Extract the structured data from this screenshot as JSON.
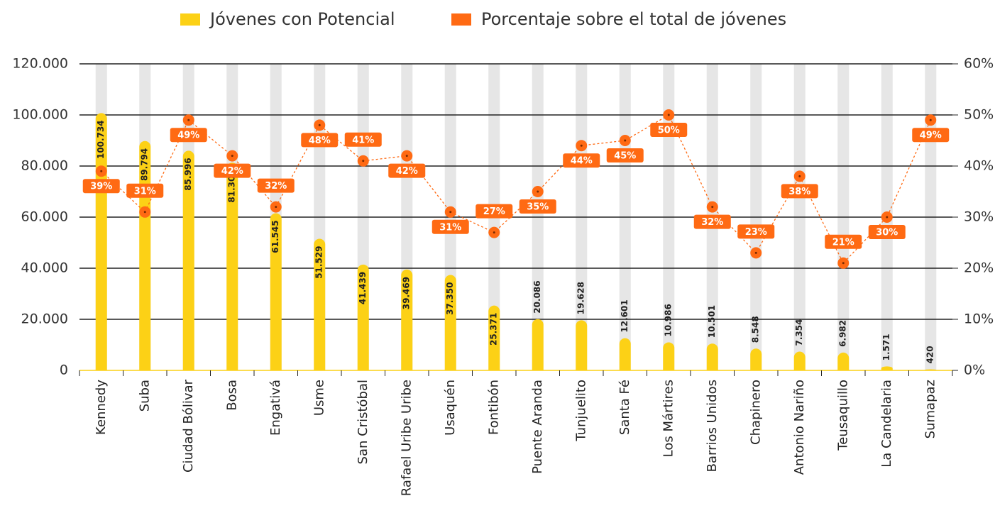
{
  "chart_data": {
    "type": "bar",
    "categories": [
      "Kennedy",
      "Suba",
      "Ciudad Bólivar",
      "Bosa",
      "Engativá",
      "Usme",
      "San Cristóbal",
      "Rafael Uribe Uribe",
      "Usaquén",
      "Fontibón",
      "Puente Aranda",
      "Tunjuelito",
      "Santa Fé",
      "Los Mártires",
      "Barrios Unidos",
      "Chapinero",
      "Antonio Nariño",
      "Teusaquillo",
      "La Candelaria",
      "Sumapaz"
    ],
    "series": [
      {
        "name": "Jóvenes con Potencial",
        "color": "#fcd116",
        "values": [
          100734,
          89794,
          85996,
          81307,
          61545,
          51529,
          41439,
          39469,
          37350,
          25371,
          20086,
          19628,
          12601,
          10986,
          10501,
          8548,
          7354,
          6982,
          1571,
          420
        ],
        "value_labels": [
          "100.734",
          "89.794",
          "85.996",
          "81.307",
          "61.545",
          "51.529",
          "41.439",
          "39.469",
          "37.350",
          "25.371",
          "20.086",
          "19.628",
          "12.601",
          "10.986",
          "10.501",
          "8.548",
          "7.354",
          "6.982",
          "1.571",
          "420"
        ]
      },
      {
        "name": "Porcentaje sobre el total de jóvenes",
        "color": "#ff6a13",
        "type": "line",
        "axis": "y2",
        "values": [
          39,
          31,
          49,
          42,
          32,
          48,
          41,
          42,
          31,
          27,
          35,
          44,
          45,
          50,
          32,
          23,
          38,
          21,
          30,
          49
        ],
        "value_labels": [
          "39%",
          "31%",
          "49%",
          "42%",
          "32%",
          "48%",
          "41%",
          "42%",
          "31%",
          "27%",
          "35%",
          "44%",
          "45%",
          "50%",
          "32%",
          "23%",
          "38%",
          "21%",
          "30%",
          "49%"
        ]
      }
    ],
    "ylim": [
      0,
      120000
    ],
    "yticks": [
      0,
      {
        "value": 20000,
        "label": "20.000"
      },
      {
        "value": 40000,
        "label": "40.000"
      },
      {
        "value": 60000,
        "label": "60.000"
      },
      {
        "value": 80000,
        "label": "80.000"
      },
      {
        "value": 100000,
        "label": "100.000"
      },
      {
        "value": 120000,
        "label": "120.000"
      }
    ],
    "y2lim": [
      0,
      60
    ],
    "y2ticks": [
      {
        "value": 0,
        "label": "0%"
      },
      {
        "value": 10,
        "label": "10%"
      },
      {
        "value": 20,
        "label": "20%"
      },
      {
        "value": 30,
        "label": "30%"
      },
      {
        "value": 40,
        "label": "40%"
      },
      {
        "value": 50,
        "label": "50%"
      },
      {
        "value": 60,
        "label": "60%"
      }
    ],
    "grid": true,
    "legend": "top"
  }
}
